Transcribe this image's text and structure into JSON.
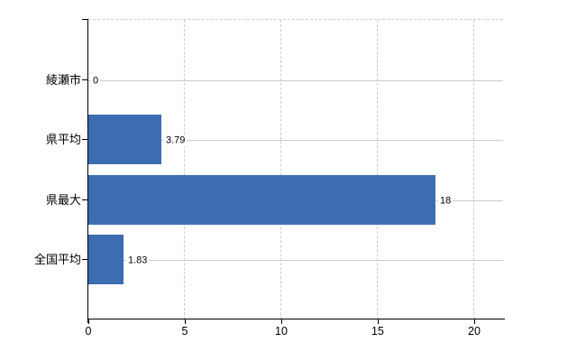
{
  "chart_data": {
    "type": "bar",
    "orientation": "horizontal",
    "title": "",
    "categories": [
      "綾瀬市",
      "県平均",
      "県最大",
      "全国平均"
    ],
    "values": [
      0,
      3.79,
      18,
      1.83
    ],
    "value_labels": [
      "0",
      "3.79",
      "18",
      "1.83"
    ],
    "x_ticks": [
      0,
      5,
      10,
      15,
      20
    ],
    "xlim": [
      0,
      20
    ],
    "legend": "none",
    "grid": {
      "vertical": "dashed at each x tick",
      "horizontal": "solid at each category center",
      "top_border": "dashed"
    },
    "colors": {
      "bar": "#3c6db2",
      "gridline": "#cccccc",
      "axis": "#000000",
      "text": "#000000",
      "background": "#ffffff"
    }
  }
}
